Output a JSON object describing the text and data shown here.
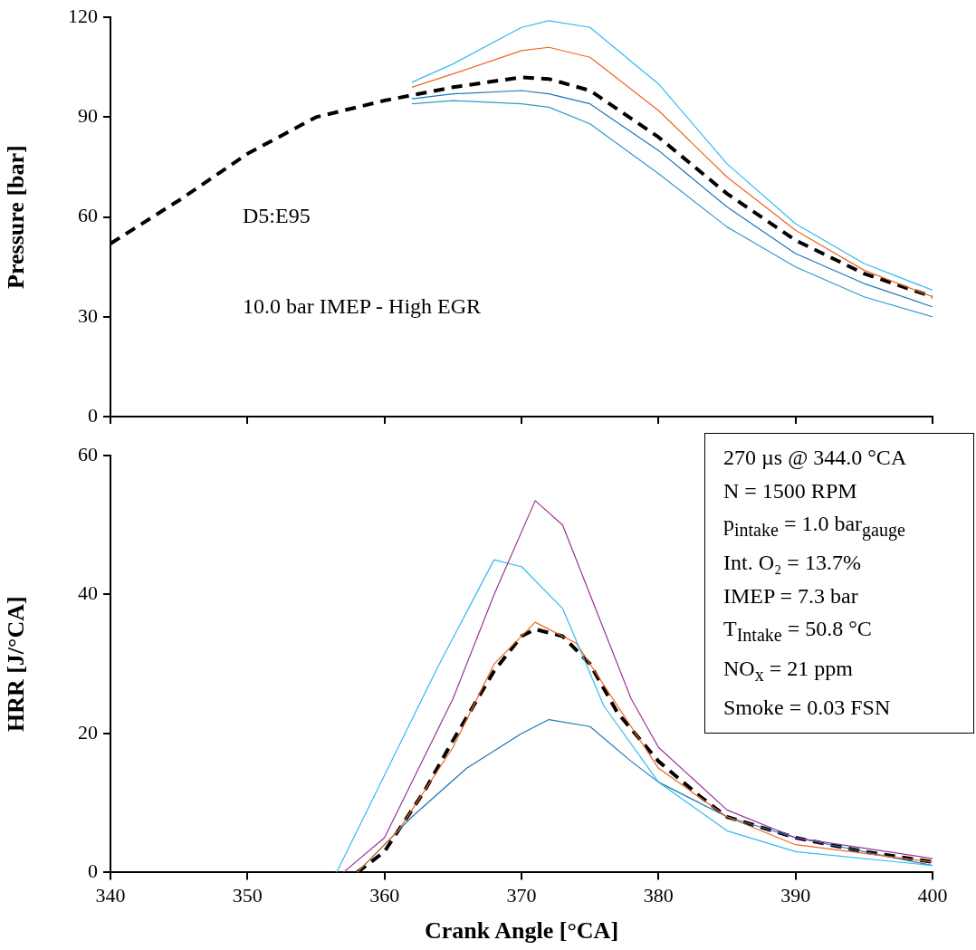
{
  "chart_data": [
    {
      "type": "line",
      "xlim": [
        340,
        400
      ],
      "xticks": [
        340,
        350,
        360,
        370,
        380,
        390,
        400
      ],
      "ylim": [
        0,
        120
      ],
      "yticks": [
        0,
        30,
        60,
        90,
        120
      ],
      "ylabel": "Pressure [bar]",
      "tick_labels": "y",
      "grid": false,
      "marker": "none",
      "annotations": [
        "D5:E95",
        "10.0 bar IMEP - High EGR"
      ],
      "series": [
        {
          "color": "#33bbee",
          "line_style": "solid",
          "x": [
            362,
            365,
            370,
            372,
            375,
            380,
            385,
            390,
            395,
            400
          ],
          "values": [
            100.5,
            106,
            117,
            119,
            117,
            100,
            76,
            58,
            46,
            38
          ]
        },
        {
          "color": "#ee6622",
          "line_style": "solid",
          "x": [
            362,
            365,
            370,
            372,
            375,
            380,
            385,
            390,
            395,
            400
          ],
          "values": [
            99,
            103,
            110,
            111,
            108,
            92,
            72,
            56,
            44,
            36
          ]
        },
        {
          "color": "#1f77b4",
          "line_style": "solid",
          "x": [
            362,
            365,
            370,
            372,
            375,
            380,
            385,
            390,
            395,
            400
          ],
          "values": [
            95.5,
            97,
            98,
            97,
            94,
            80,
            63,
            49,
            40,
            33
          ]
        },
        {
          "color": "#3399cc",
          "line_style": "solid",
          "x": [
            362,
            365,
            370,
            372,
            375,
            380,
            385,
            390,
            395,
            400
          ],
          "values": [
            94,
            95,
            94,
            93,
            88,
            73,
            57,
            45,
            36,
            30
          ]
        },
        {
          "color": "#000000",
          "line_style": "dashed",
          "x": [
            340,
            345,
            350,
            355,
            358,
            360,
            365,
            370,
            372,
            375,
            380,
            385,
            390,
            395,
            400
          ],
          "values": [
            52,
            65,
            79,
            90,
            93,
            95,
            99,
            102,
            101.5,
            98,
            84,
            67,
            53,
            43,
            36
          ]
        }
      ]
    },
    {
      "type": "line",
      "xlim": [
        340,
        400
      ],
      "xticks": [
        340,
        350,
        360,
        370,
        380,
        390,
        400
      ],
      "ylim": [
        0,
        60
      ],
      "yticks": [
        0,
        20,
        40,
        60
      ],
      "xlabel": "Crank Angle [°CA]",
      "ylabel": "HRR [J/°CA]",
      "grid": false,
      "marker": "none",
      "annotations": [
        "270 µs @ 344.0 °CA",
        "N = 1500 RPM",
        "p$_{intake}$ = 1.0 bar$_{gauge}$",
        "Int. O₂ = 13.7%",
        "IMEP = 7.3 bar",
        "T$_{Intake}$ = 50.8 °C",
        "NO$_{x}$ = 21 ppm",
        "Smoke = 0.03 FSN"
      ],
      "series": [
        {
          "color": "#993399",
          "line_style": "solid",
          "x": [
            357,
            360,
            365,
            368,
            371,
            373,
            375,
            378,
            380,
            385,
            390,
            400
          ],
          "values": [
            0,
            5,
            25,
            40,
            53.5,
            50,
            40,
            25,
            18,
            9,
            5,
            2
          ]
        },
        {
          "color": "#33bbee",
          "line_style": "solid",
          "x": [
            356.5,
            360,
            364,
            368,
            370,
            373,
            376,
            380,
            385,
            390,
            400
          ],
          "values": [
            0,
            14,
            30,
            45,
            44,
            38,
            24,
            13,
            6,
            3,
            1
          ]
        },
        {
          "color": "#ee6622",
          "line_style": "solid",
          "x": [
            358,
            361,
            365,
            368,
            371,
            374,
            377,
            380,
            385,
            390,
            400
          ],
          "values": [
            0,
            6,
            18,
            30,
            36,
            33,
            24,
            15,
            8,
            4,
            1.5
          ]
        },
        {
          "color": "#1f77b4",
          "line_style": "solid",
          "x": [
            358,
            362,
            366,
            370,
            372,
            375,
            378,
            380,
            385,
            390,
            400
          ],
          "values": [
            0,
            8,
            15,
            20,
            22,
            21,
            16,
            13,
            8,
            5,
            1
          ]
        },
        {
          "color": "#000000",
          "line_style": "dashed",
          "x": [
            358,
            360,
            363,
            365,
            368,
            370,
            371,
            373,
            375,
            377,
            380,
            383,
            385,
            390,
            395,
            400
          ],
          "values": [
            0,
            3,
            12,
            19,
            29,
            34,
            35,
            34,
            30,
            23,
            16,
            11,
            8,
            5,
            3,
            1.5
          ]
        }
      ]
    }
  ]
}
